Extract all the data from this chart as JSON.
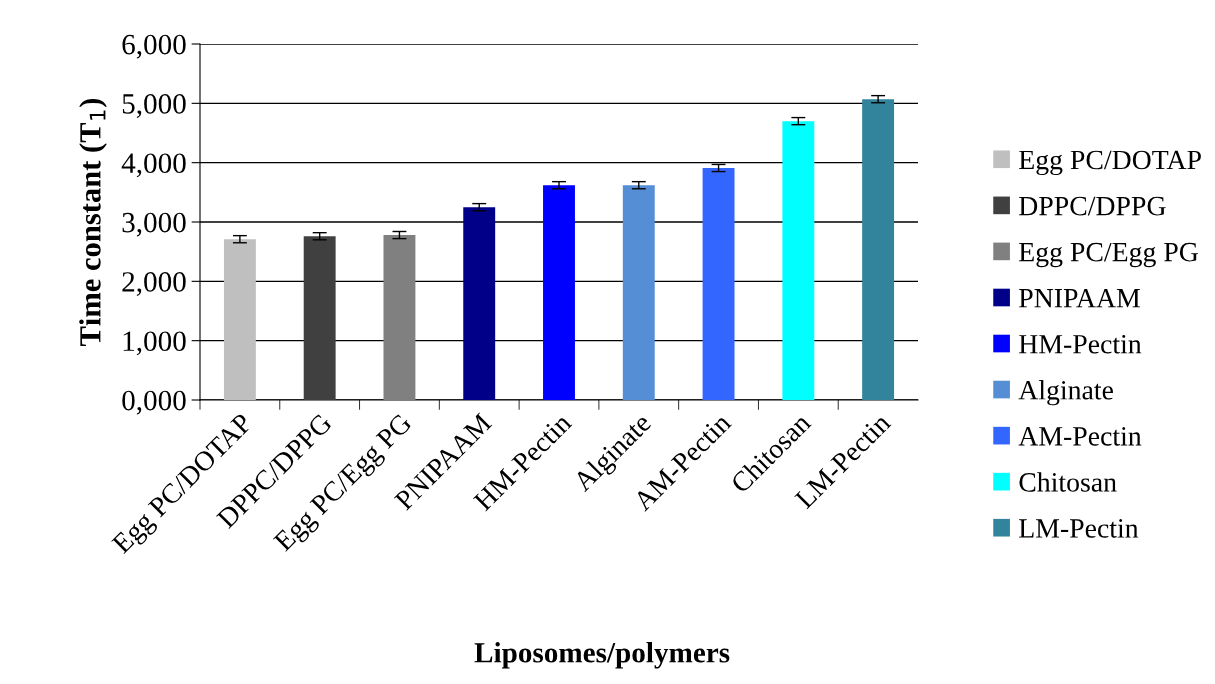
{
  "chart_data": {
    "type": "bar",
    "xlabel": "Liposomes/polymers",
    "ylabel": "Time constant (T$_{1}$)",
    "categories": [
      "Egg PC/DOTAP",
      "DPPC/DPPG",
      "Egg PC/Egg PG",
      "PNIPAAM",
      "HM-Pectin",
      "Alginate",
      "AM-Pectin",
      "Chitosan",
      "LM-Pectin"
    ],
    "series": [
      {
        "name": "Egg PC/DOTAP",
        "color": "#bfbfbf",
        "values": [
          2710,
          null,
          null,
          null,
          null,
          null,
          null,
          null,
          null
        ],
        "errors": [
          60,
          null,
          null,
          null,
          null,
          null,
          null,
          null,
          null
        ]
      },
      {
        "name": "DPPC/DPPG",
        "color": "#404040",
        "values": [
          null,
          2760,
          null,
          null,
          null,
          null,
          null,
          null,
          null
        ],
        "errors": [
          null,
          60,
          null,
          null,
          null,
          null,
          null,
          null,
          null
        ]
      },
      {
        "name": "Egg PC/Egg PG",
        "color": "#808080",
        "values": [
          null,
          null,
          2780,
          null,
          null,
          null,
          null,
          null,
          null
        ],
        "errors": [
          null,
          null,
          60,
          null,
          null,
          null,
          null,
          null,
          null
        ]
      },
      {
        "name": "PNIPAAM",
        "color": "#000088",
        "values": [
          null,
          null,
          null,
          3250,
          null,
          null,
          null,
          null,
          null
        ],
        "errors": [
          null,
          null,
          null,
          60,
          null,
          null,
          null,
          null,
          null
        ]
      },
      {
        "name": "HM-Pectin",
        "color": "#0000ff",
        "values": [
          null,
          null,
          null,
          null,
          3620,
          null,
          null,
          null,
          null
        ],
        "errors": [
          null,
          null,
          null,
          null,
          60,
          null,
          null,
          null,
          null
        ]
      },
      {
        "name": "Alginate",
        "color": "#558ed5",
        "values": [
          null,
          null,
          null,
          null,
          null,
          3620,
          null,
          null,
          null
        ],
        "errors": [
          null,
          null,
          null,
          null,
          null,
          60,
          null,
          null,
          null
        ]
      },
      {
        "name": "AM-Pectin",
        "color": "#3366ff",
        "values": [
          null,
          null,
          null,
          null,
          null,
          null,
          3910,
          null,
          null
        ],
        "errors": [
          null,
          null,
          null,
          null,
          null,
          null,
          60,
          null,
          null
        ]
      },
      {
        "name": "Chitosan",
        "color": "#00ffff",
        "values": [
          null,
          null,
          null,
          null,
          null,
          null,
          null,
          4700,
          null
        ],
        "errors": [
          null,
          null,
          null,
          null,
          null,
          null,
          null,
          60,
          null
        ]
      },
      {
        "name": "LM-Pectin",
        "color": "#31849b",
        "values": [
          null,
          null,
          null,
          null,
          null,
          null,
          null,
          null,
          5070
        ],
        "errors": [
          null,
          null,
          null,
          null,
          null,
          null,
          null,
          null,
          60
        ]
      }
    ],
    "ylim": [
      0,
      6000
    ],
    "yticks": [
      {
        "value": 0,
        "label": "0,000"
      },
      {
        "value": 1000,
        "label": "1,000"
      },
      {
        "value": 2000,
        "label": "2,000"
      },
      {
        "value": 3000,
        "label": "3,000"
      },
      {
        "value": 4000,
        "label": "4,000"
      },
      {
        "value": 5000,
        "label": "5,000"
      },
      {
        "value": 6000,
        "label": "6,000"
      }
    ],
    "grid": "y",
    "legend": "right"
  }
}
